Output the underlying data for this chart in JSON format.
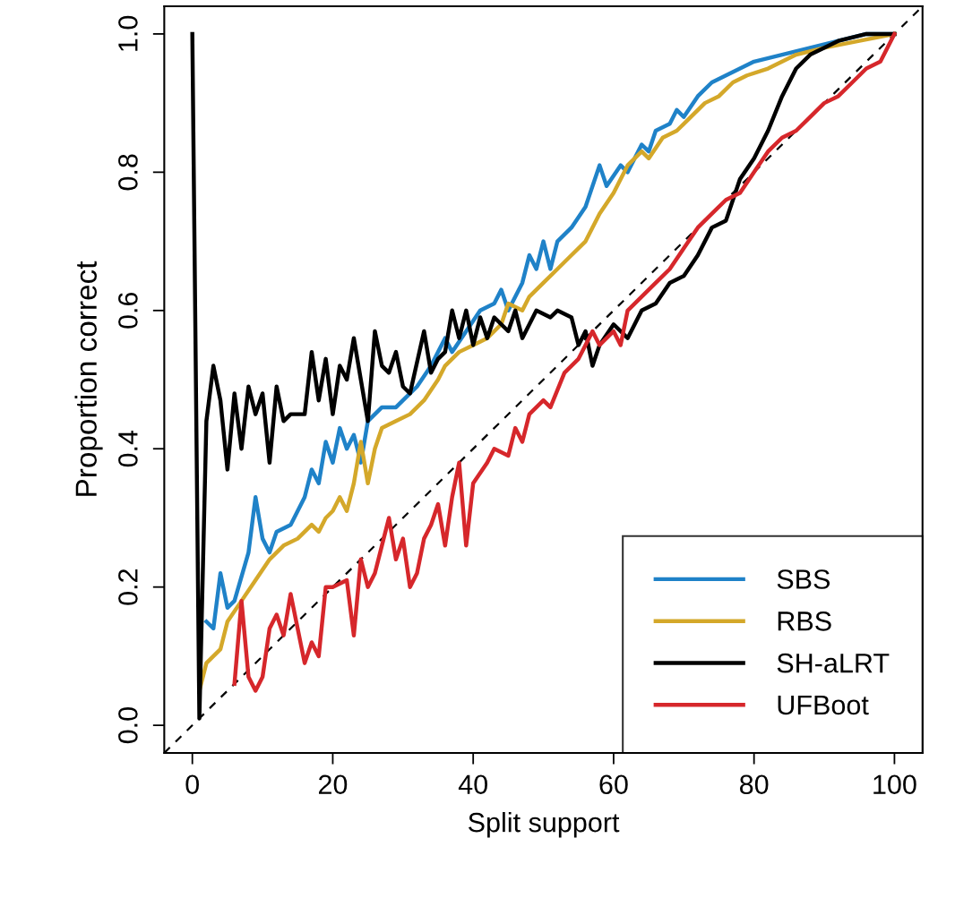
{
  "chart_data": {
    "type": "line",
    "xlabel": "Split support",
    "ylabel": "Proportion correct",
    "xlim": [
      -4,
      104
    ],
    "ylim": [
      -0.04,
      1.04
    ],
    "xticks": [
      0,
      20,
      40,
      60,
      80,
      100
    ],
    "yticks": [
      {
        "value": 0,
        "label": "0.0"
      },
      0.2,
      0.4,
      0.6,
      0.8,
      {
        "value": 1,
        "label": "1.0"
      }
    ],
    "grid": false,
    "legend": "bottom right",
    "series": [
      {
        "name": "SBS",
        "color": "#1f82c8",
        "x": [
          2,
          3,
          4,
          5,
          6,
          8,
          9,
          10,
          11,
          12,
          14,
          16,
          17,
          18,
          19,
          20,
          21,
          22,
          23,
          24,
          25,
          27,
          29,
          30,
          32,
          34,
          35,
          36,
          37,
          39,
          41,
          43,
          44,
          45,
          47,
          48,
          49,
          50,
          51,
          52,
          54,
          56,
          58,
          59,
          61,
          62,
          64,
          65,
          66,
          68,
          69,
          70,
          72,
          74,
          76,
          78,
          80,
          84,
          88,
          92,
          96,
          100
        ],
        "values": [
          0.15,
          0.14,
          0.22,
          0.17,
          0.18,
          0.25,
          0.33,
          0.27,
          0.25,
          0.28,
          0.29,
          0.33,
          0.37,
          0.35,
          0.41,
          0.38,
          0.43,
          0.4,
          0.42,
          0.38,
          0.44,
          0.46,
          0.46,
          0.47,
          0.49,
          0.52,
          0.54,
          0.56,
          0.54,
          0.57,
          0.6,
          0.61,
          0.63,
          0.6,
          0.64,
          0.68,
          0.66,
          0.7,
          0.66,
          0.7,
          0.72,
          0.75,
          0.81,
          0.78,
          0.81,
          0.8,
          0.84,
          0.83,
          0.86,
          0.87,
          0.89,
          0.88,
          0.91,
          0.93,
          0.94,
          0.95,
          0.96,
          0.97,
          0.98,
          0.99,
          1.0,
          1.0
        ]
      },
      {
        "name": "RBS",
        "color": "#d4a82a",
        "x": [
          1,
          2,
          4,
          5,
          7,
          9,
          11,
          13,
          15,
          17,
          18,
          19,
          20,
          21,
          22,
          23,
          24,
          25,
          26,
          27,
          29,
          31,
          33,
          35,
          36,
          38,
          40,
          42,
          44,
          45,
          47,
          48,
          50,
          52,
          54,
          56,
          58,
          60,
          62,
          64,
          65,
          67,
          69,
          71,
          73,
          75,
          77,
          79,
          82,
          86,
          90,
          95,
          100
        ],
        "values": [
          0.05,
          0.09,
          0.11,
          0.15,
          0.18,
          0.21,
          0.24,
          0.26,
          0.27,
          0.29,
          0.28,
          0.3,
          0.31,
          0.33,
          0.31,
          0.35,
          0.41,
          0.35,
          0.4,
          0.43,
          0.44,
          0.45,
          0.47,
          0.5,
          0.52,
          0.54,
          0.55,
          0.56,
          0.58,
          0.61,
          0.6,
          0.62,
          0.64,
          0.66,
          0.68,
          0.7,
          0.74,
          0.77,
          0.81,
          0.83,
          0.82,
          0.85,
          0.86,
          0.88,
          0.9,
          0.91,
          0.93,
          0.94,
          0.95,
          0.97,
          0.98,
          0.99,
          1.0
        ]
      },
      {
        "name": "SH-aLRT",
        "color": "#000000",
        "x": [
          0,
          1,
          2,
          3,
          4,
          5,
          6,
          7,
          8,
          9,
          10,
          11,
          12,
          13,
          14,
          16,
          17,
          18,
          19,
          20,
          21,
          22,
          23,
          24,
          25,
          26,
          27,
          28,
          29,
          30,
          31,
          33,
          34,
          35,
          36,
          37,
          38,
          39,
          40,
          41,
          42,
          43,
          45,
          46,
          47,
          49,
          51,
          52,
          54,
          55,
          56,
          57,
          58,
          60,
          62,
          64,
          66,
          68,
          70,
          72,
          74,
          76,
          78,
          80,
          82,
          84,
          86,
          88,
          92,
          96,
          100
        ],
        "values": [
          1.0,
          0.01,
          0.44,
          0.52,
          0.47,
          0.37,
          0.48,
          0.4,
          0.49,
          0.45,
          0.48,
          0.38,
          0.49,
          0.44,
          0.45,
          0.45,
          0.54,
          0.47,
          0.53,
          0.45,
          0.52,
          0.5,
          0.56,
          0.5,
          0.44,
          0.57,
          0.52,
          0.51,
          0.54,
          0.49,
          0.48,
          0.57,
          0.51,
          0.53,
          0.54,
          0.6,
          0.56,
          0.6,
          0.55,
          0.59,
          0.56,
          0.59,
          0.57,
          0.6,
          0.56,
          0.6,
          0.59,
          0.6,
          0.59,
          0.55,
          0.57,
          0.52,
          0.55,
          0.58,
          0.56,
          0.6,
          0.61,
          0.64,
          0.65,
          0.68,
          0.72,
          0.73,
          0.79,
          0.82,
          0.86,
          0.91,
          0.95,
          0.97,
          0.99,
          1.0,
          1.0
        ]
      },
      {
        "name": "UFBoot",
        "color": "#d6272b",
        "x": [
          6,
          7,
          8,
          9,
          10,
          11,
          12,
          13,
          14,
          15,
          16,
          17,
          18,
          19,
          20,
          22,
          23,
          24,
          25,
          26,
          27,
          28,
          29,
          30,
          31,
          32,
          33,
          34,
          35,
          36,
          37,
          38,
          39,
          40,
          42,
          43,
          45,
          46,
          47,
          48,
          50,
          51,
          53,
          55,
          56,
          57,
          58,
          60,
          61,
          62,
          64,
          66,
          68,
          70,
          72,
          74,
          76,
          78,
          80,
          82,
          84,
          86,
          88,
          90,
          92,
          94,
          96,
          98,
          100
        ],
        "values": [
          0.06,
          0.18,
          0.07,
          0.05,
          0.07,
          0.14,
          0.16,
          0.13,
          0.19,
          0.14,
          0.09,
          0.12,
          0.1,
          0.2,
          0.2,
          0.21,
          0.13,
          0.24,
          0.2,
          0.22,
          0.26,
          0.3,
          0.24,
          0.27,
          0.2,
          0.22,
          0.27,
          0.29,
          0.32,
          0.26,
          0.33,
          0.38,
          0.26,
          0.35,
          0.38,
          0.4,
          0.39,
          0.43,
          0.41,
          0.45,
          0.47,
          0.46,
          0.51,
          0.53,
          0.55,
          0.57,
          0.55,
          0.57,
          0.55,
          0.6,
          0.62,
          0.64,
          0.66,
          0.69,
          0.72,
          0.74,
          0.76,
          0.77,
          0.8,
          0.83,
          0.85,
          0.86,
          0.88,
          0.9,
          0.91,
          0.93,
          0.95,
          0.96,
          1.0
        ]
      },
      {
        "color": "#000000",
        "line_style": "dashed",
        "x": [
          -4,
          104
        ],
        "values": [
          -0.04,
          1.04
        ]
      }
    ]
  }
}
